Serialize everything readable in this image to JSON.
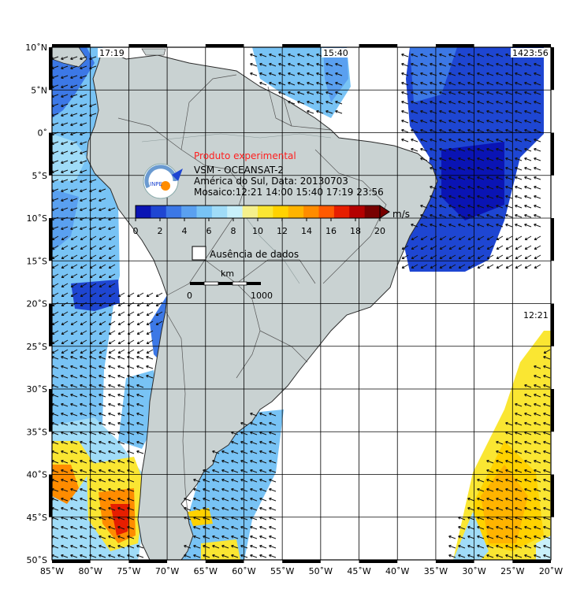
{
  "map": {
    "lon_min": -85,
    "lon_max": -20,
    "lat_min": -50,
    "lat_max": 10,
    "lon_labels": [
      "85˚W",
      "80˚W",
      "75˚W",
      "70˚W",
      "65˚W",
      "60˚W",
      "55˚W",
      "50˚W",
      "45˚W",
      "40˚W",
      "35˚W",
      "30˚W",
      "25˚W",
      "20˚W"
    ],
    "lat_labels": [
      "10˚N",
      "5˚N",
      "0˚",
      "5˚S",
      "10˚S",
      "15˚S",
      "20˚S",
      "25˚S",
      "30˚S",
      "35˚S",
      "40˚S",
      "45˚S",
      "50˚S"
    ],
    "pass_times": {
      "t1": "17:19",
      "t2": "15:40",
      "t3": "14",
      "t4": "23:56",
      "t5": "12:21"
    }
  },
  "header": {
    "experimental": "Produto experimental",
    "product": "VSM - OCEANSAT-2",
    "region": "América do Sul, Data: 20130703",
    "mosaic": "Mosaico:12:21 14:00 15:40 17:19 23:56",
    "logo_text": "INPE"
  },
  "colorbar": {
    "unit": "m/s",
    "ticks": [
      "0",
      "2",
      "4",
      "6",
      "8",
      "10",
      "12",
      "14",
      "16",
      "18",
      "20"
    ],
    "colors": [
      "#0a14b4",
      "#1e46d2",
      "#3c78e6",
      "#5aa0f0",
      "#78c3f5",
      "#a0dcf8",
      "#c8f0fa",
      "#f5f08c",
      "#fae632",
      "#ffd200",
      "#ffb400",
      "#ff8c00",
      "#ff5a00",
      "#e61e00",
      "#b40000",
      "#780000"
    ]
  },
  "legend": {
    "no_data": "Ausência de dados"
  },
  "scale": {
    "unit": "km",
    "start": "0",
    "end": "1000"
  },
  "colors": {
    "land": "#c9d2d2",
    "ocean_nodata": "#ffffff",
    "grid": "#000000",
    "coast": "#2a2a2a"
  }
}
